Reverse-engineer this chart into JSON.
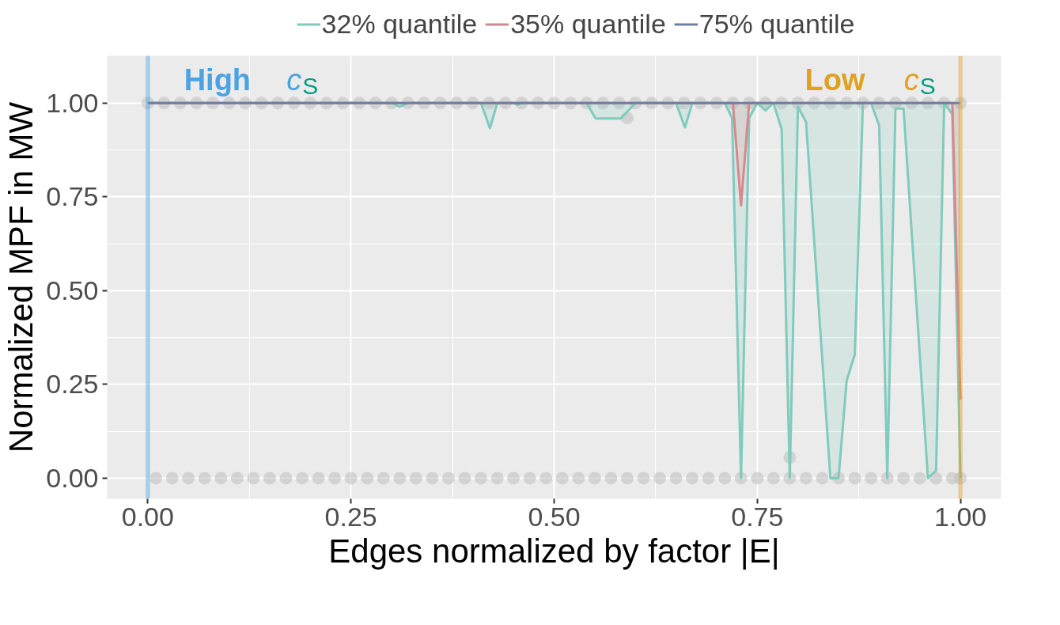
{
  "chart_data": {
    "type": "line",
    "xlabel": "Edges normalized by factor |E|",
    "ylabel": "Normalized MPF in MW",
    "xlim": [
      -0.05,
      1.05
    ],
    "ylim": [
      -0.055,
      1.126
    ],
    "xticks": [
      {
        "value": 0,
        "label": "0.00"
      },
      {
        "value": 0.25,
        "label": "0.25"
      },
      {
        "value": 0.5,
        "label": "0.50"
      },
      {
        "value": 0.75,
        "label": "0.75"
      },
      {
        "value": 1,
        "label": "1.00"
      }
    ],
    "yticks": [
      {
        "value": 0,
        "label": "0.00"
      },
      {
        "value": 0.25,
        "label": "0.25"
      },
      {
        "value": 0.5,
        "label": "0.50"
      },
      {
        "value": 0.75,
        "label": "0.75"
      },
      {
        "value": 1,
        "label": "1.00"
      }
    ],
    "grid": true,
    "legend": "top",
    "series": [
      {
        "type": "scatter",
        "marker": "circle",
        "color": "#bebebe",
        "x": [
          0,
          0.02,
          0.04,
          0.06,
          0.08,
          0.1,
          0.12,
          0.14,
          0.16,
          0.18,
          0.2,
          0.22,
          0.24,
          0.26,
          0.28,
          0.3,
          0.32,
          0.34,
          0.36,
          0.38,
          0.4,
          0.42,
          0.44,
          0.46,
          0.48,
          0.5,
          0.52,
          0.54,
          0.56,
          0.58,
          0.6,
          0.62,
          0.64,
          0.66,
          0.68,
          0.7,
          0.72,
          0.74,
          0.76,
          0.78,
          0.8,
          0.82,
          0.84,
          0.86,
          0.88,
          0.9,
          0.92,
          0.94,
          0.96,
          0.98,
          1,
          0.01,
          0.03,
          0.05,
          0.07,
          0.09,
          0.11,
          0.13,
          0.15,
          0.17,
          0.19,
          0.21,
          0.23,
          0.25,
          0.27,
          0.29,
          0.31,
          0.33,
          0.35,
          0.37,
          0.39,
          0.41,
          0.43,
          0.45,
          0.47,
          0.49,
          0.51,
          0.53,
          0.55,
          0.57,
          0.59,
          0.61,
          0.63,
          0.65,
          0.67,
          0.69,
          0.71,
          0.73,
          0.75,
          0.77,
          0.79,
          0.81,
          0.83,
          0.85,
          0.87,
          0.89,
          0.91,
          0.93,
          0.95,
          0.97,
          0.99,
          1,
          0.59,
          0.79
        ],
        "values": [
          1,
          1,
          1,
          1,
          1,
          1,
          1,
          1,
          1,
          1,
          1,
          1,
          1,
          1,
          1,
          1,
          1,
          1,
          1,
          1,
          1,
          1,
          1,
          1,
          1,
          1,
          1,
          1,
          1,
          1,
          1,
          1,
          1,
          1,
          1,
          1,
          1,
          1,
          1,
          1,
          1,
          1,
          1,
          1,
          1,
          1,
          1,
          1,
          1,
          1,
          1,
          0,
          0,
          0,
          0,
          0,
          0,
          0,
          0,
          0,
          0,
          0,
          0,
          0,
          0,
          0,
          0,
          0,
          0,
          0,
          0,
          0,
          0,
          0,
          0,
          0,
          0,
          0,
          0,
          0,
          0,
          0,
          0,
          0,
          0,
          0,
          0,
          0,
          0,
          0,
          0,
          0,
          0,
          0,
          0,
          0,
          0,
          0,
          0,
          0,
          0,
          0,
          0.96,
          0.055
        ]
      },
      {
        "name": "32% quantile",
        "color": "#7fcbbd",
        "x": [
          0,
          0.3,
          0.31,
          0.32,
          0.41,
          0.421,
          0.43,
          0.45,
          0.455,
          0.46,
          0.54,
          0.551,
          0.582,
          0.6,
          0.65,
          0.661,
          0.67,
          0.71,
          0.719,
          0.73,
          0.74,
          0.75,
          0.76,
          0.77,
          0.78,
          0.79,
          0.8,
          0.81,
          0.84,
          0.85,
          0.86,
          0.87,
          0.88,
          0.89,
          0.9,
          0.91,
          0.92,
          0.93,
          0.96,
          0.97,
          0.98,
          0.99,
          1.0
        ],
        "values": [
          1,
          1,
          0.99,
          1,
          1,
          0.933,
          1,
          1,
          0.995,
          1,
          1,
          0.959,
          0.959,
          1,
          1,
          0.935,
          1,
          1,
          0.96,
          0,
          0.96,
          1,
          0.98,
          1,
          0.93,
          0,
          0.99,
          0.95,
          0,
          0,
          0.26,
          0.33,
          1,
          1,
          0.94,
          0,
          0.985,
          0.985,
          0,
          0.02,
          1,
          0.97,
          0
        ]
      },
      {
        "name": "35% quantile",
        "color": "#d6898d",
        "x": [
          0,
          0.72,
          0.73,
          0.74,
          0.99,
          1.0
        ],
        "values": [
          1,
          1,
          0.727,
          1,
          1,
          0.21
        ]
      },
      {
        "name": "75% quantile",
        "color": "#6e80a8",
        "x": [
          0,
          1
        ],
        "values": [
          1,
          1
        ]
      }
    ],
    "ref_lines": [
      {
        "axis": "x",
        "value": 0,
        "label": "High c$_{S}$",
        "color": "#4ba3e3"
      },
      {
        "axis": "x",
        "value": 1,
        "label": "Low c$_{S}$",
        "color": "#e0a020"
      }
    ]
  }
}
